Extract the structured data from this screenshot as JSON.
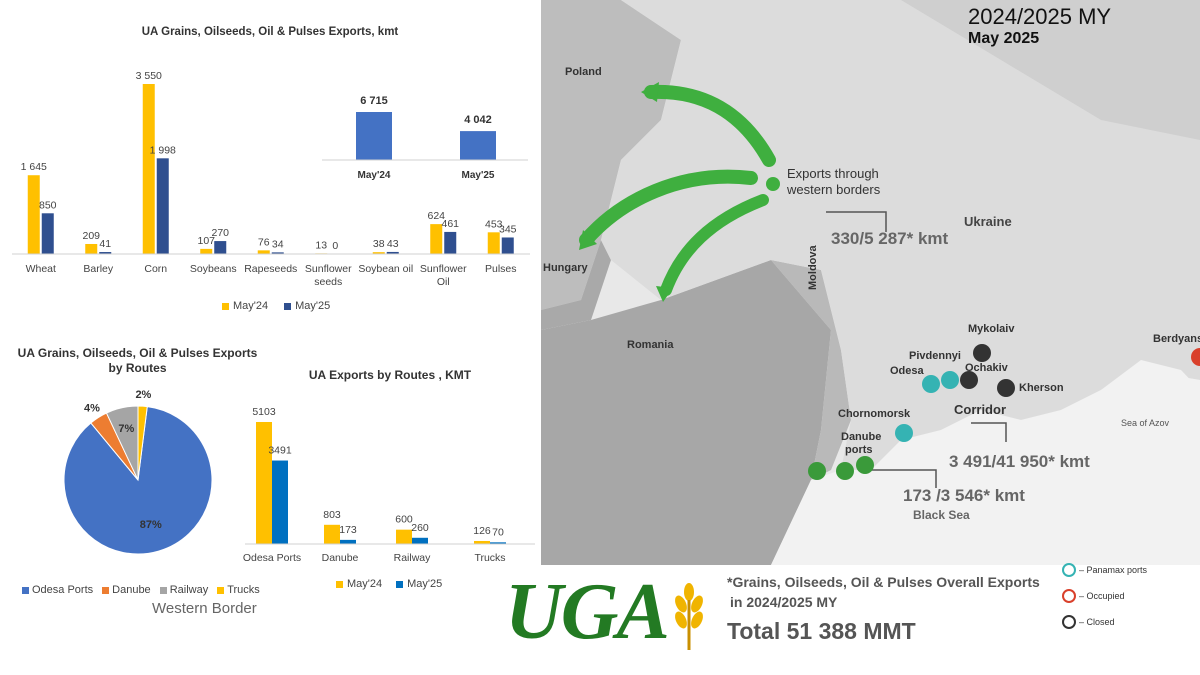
{
  "chart_data": [
    {
      "type": "bar",
      "title": "UA Grains, Oilseeds, Oil & Pulses Exports, kmt",
      "categories": [
        "Wheat",
        "Barley",
        "Corn",
        "Soybeans",
        "Rapeseeds",
        "Sunflower seeds",
        "Soybean oil",
        "Sunflower Oil",
        "Pulses"
      ],
      "category_lines": [
        [
          "Wheat"
        ],
        [
          "Barley"
        ],
        [
          "Corn"
        ],
        [
          "Soybeans"
        ],
        [
          "Rapeseeds"
        ],
        [
          "Sunflower",
          "seeds"
        ],
        [
          "Soybean oil"
        ],
        [
          "Sunflower",
          "Oil"
        ],
        [
          "Pulses"
        ]
      ],
      "series": [
        {
          "name": "May'24",
          "color": "#FFC000",
          "values": [
            1645,
            209,
            3550,
            107,
            76,
            13,
            38,
            624,
            453
          ],
          "labels": [
            "1 645",
            "209",
            "3 550",
            "107",
            "76",
            "13",
            "38",
            "624",
            "453"
          ]
        },
        {
          "name": "May'25",
          "color": "#2F4F8F",
          "values": [
            850,
            41,
            1998,
            270,
            34,
            0,
            43,
            461,
            345
          ],
          "labels": [
            "850",
            "41",
            "1 998",
            "270",
            "34",
            "0",
            "43",
            "461",
            "345"
          ]
        }
      ],
      "legend": "bottom"
    },
    {
      "type": "bar",
      "categories": [
        "May'24",
        "May'25"
      ],
      "values": [
        6715,
        4042
      ],
      "labels": [
        "6 715",
        "4 042"
      ],
      "color": "#4472C4"
    },
    {
      "type": "pie",
      "title_lines": [
        "UA Grains, Oilseeds, Oil & Pulses Exports",
        "by Routes"
      ],
      "slices": [
        {
          "name": "Odesa Ports",
          "value": 87,
          "label": "87%",
          "color": "#4472C4"
        },
        {
          "name": "Danube",
          "value": 4,
          "label": "4%",
          "color": "#ED7D31"
        },
        {
          "name": "Railway",
          "value": 7,
          "label": "7%",
          "color": "#A5A5A5"
        },
        {
          "name": "Trucks",
          "value": 2,
          "label": "2%",
          "color": "#FFC000"
        }
      ],
      "legend": "bottom",
      "caption": "Western Border"
    },
    {
      "type": "bar",
      "title": "UA Exports by Routes , KMT",
      "categories": [
        "Odesa Ports",
        "Danube",
        "Railway",
        "Trucks"
      ],
      "series": [
        {
          "name": "May'24",
          "color": "#FFC000",
          "values": [
            5103,
            803,
            600,
            126
          ],
          "labels": [
            "5103",
            "803",
            "600",
            "126"
          ]
        },
        {
          "name": "May'25",
          "color": "#0070C0",
          "values": [
            3491,
            173,
            260,
            70
          ],
          "labels": [
            "3491",
            "173",
            "260",
            "70"
          ]
        }
      ],
      "legend": "bottom"
    }
  ],
  "map": {
    "header_my": "2024/2025 MY",
    "header_month": "May 2025",
    "countries": {
      "poland": "Poland",
      "hungary": "Hungary",
      "romania": "Romania",
      "moldova": "Moldova",
      "ukraine": "Ukraine"
    },
    "exports_label_lines": [
      "Exports through",
      "western borders"
    ],
    "western_value": "330/5 287* kmt",
    "corridor_label": "Corridor",
    "corridor_value": "3 491/41 950* kmt",
    "danube_value": "173 /3 546* kmt",
    "ports": {
      "mykolaiv": "Mykolaiv",
      "pivdennyi": "Pivdennyi",
      "odesa": "Odesa",
      "ochakiv": "Ochakiv",
      "kherson": "Kherson",
      "chornomorsk": "Chornomorsk",
      "danube_ports_lines": [
        "Danube",
        "ports"
      ],
      "berdyansk": "Berdyans"
    },
    "sea_azov": "Sea of Azov",
    "black_sea": "Black Sea",
    "legend": {
      "panamax": "– Panamax ports",
      "occupied": "– Occupied",
      "closed": "– Closed"
    },
    "colors": {
      "panamax": "#35B3B3",
      "occupied": "#D9402B",
      "closed": "#333333",
      "danube": "#3A9A3A",
      "arrow": "#3FAF3F"
    }
  },
  "footer": {
    "logo_text": "UGA",
    "note_line1": "*Grains, Oilseeds, Oil & Pulses Overall Exports",
    "note_line2": "in 2024/2025 MY",
    "total": "Total 51 388 MMT"
  }
}
